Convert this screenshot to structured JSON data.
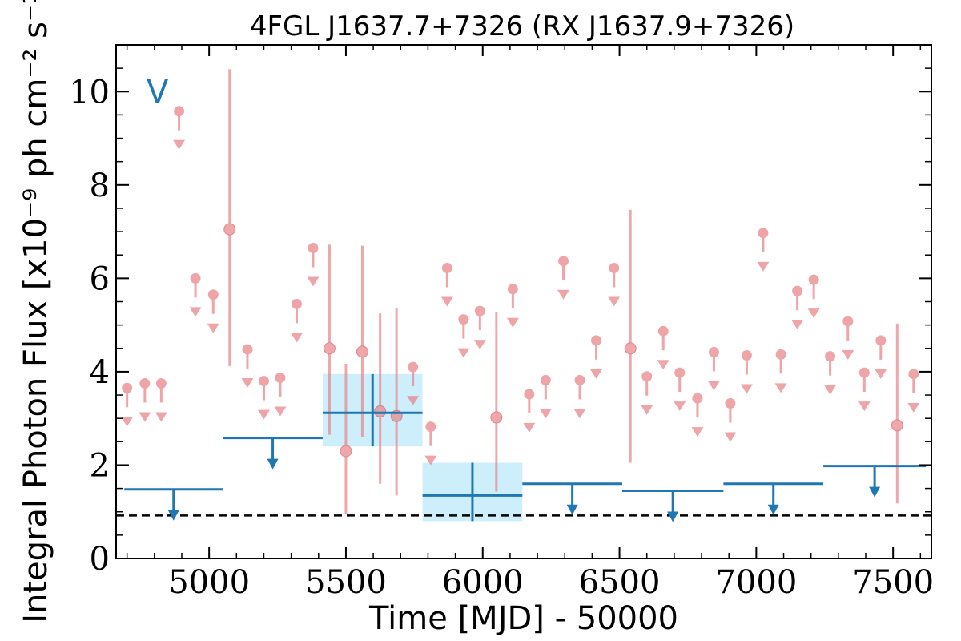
{
  "chart_data": {
    "type": "scatter",
    "title": "4FGL J1637.7+7326 (RX J1637.9+7326)",
    "xlabel": "Time [MJD] - 50000",
    "ylabel": "Integral Photon Flux [x10⁻⁹ ph cm⁻² s⁻¹]",
    "band_label": "V",
    "xlim": [
      4660,
      7640
    ],
    "ylim": [
      0,
      11
    ],
    "xticks": [
      5000,
      5500,
      6000,
      6500,
      7000,
      7500
    ],
    "yticks": [
      0,
      2,
      4,
      6,
      8,
      10
    ],
    "reference_line": 0.92,
    "colors": {
      "monthly": "#e8878c",
      "long": "#1f77b4",
      "band_fill": "#cdeefb",
      "reference": "#000000"
    },
    "series": [
      {
        "kind": "upper_limits",
        "points": [
          {
            "x": 4700,
            "y": 3.65
          },
          {
            "x": 4765,
            "y": 3.75
          },
          {
            "x": 4825,
            "y": 3.75
          },
          {
            "x": 4890,
            "y": 9.58
          },
          {
            "x": 4950,
            "y": 6.0
          },
          {
            "x": 5015,
            "y": 5.65
          },
          {
            "x": 5140,
            "y": 4.48
          },
          {
            "x": 5200,
            "y": 3.8
          },
          {
            "x": 5260,
            "y": 3.87
          },
          {
            "x": 5320,
            "y": 5.45
          },
          {
            "x": 5380,
            "y": 6.65
          },
          {
            "x": 5745,
            "y": 4.1
          },
          {
            "x": 5810,
            "y": 2.82
          },
          {
            "x": 5870,
            "y": 6.22
          },
          {
            "x": 5930,
            "y": 5.12
          },
          {
            "x": 5990,
            "y": 5.3
          },
          {
            "x": 6110,
            "y": 5.77
          },
          {
            "x": 6170,
            "y": 3.52
          },
          {
            "x": 6230,
            "y": 3.82
          },
          {
            "x": 6295,
            "y": 6.37
          },
          {
            "x": 6355,
            "y": 3.82
          },
          {
            "x": 6415,
            "y": 4.67
          },
          {
            "x": 6480,
            "y": 6.22
          },
          {
            "x": 6600,
            "y": 3.9
          },
          {
            "x": 6660,
            "y": 4.87
          },
          {
            "x": 6720,
            "y": 3.98
          },
          {
            "x": 6785,
            "y": 3.43
          },
          {
            "x": 6845,
            "y": 4.42
          },
          {
            "x": 6905,
            "y": 3.32
          },
          {
            "x": 6965,
            "y": 4.35
          },
          {
            "x": 7025,
            "y": 6.97
          },
          {
            "x": 7090,
            "y": 4.37
          },
          {
            "x": 7150,
            "y": 5.73
          },
          {
            "x": 7210,
            "y": 5.97
          },
          {
            "x": 7270,
            "y": 4.33
          },
          {
            "x": 7335,
            "y": 5.08
          },
          {
            "x": 7395,
            "y": 3.98
          },
          {
            "x": 7455,
            "y": 4.67
          },
          {
            "x": 7575,
            "y": 3.95
          }
        ]
      },
      {
        "kind": "detections",
        "points": [
          {
            "x": 5075,
            "y": 7.05,
            "ylo": 4.12,
            "yhi": 10.48
          },
          {
            "x": 5440,
            "y": 4.5,
            "ylo": 2.65,
            "yhi": 6.72
          },
          {
            "x": 5500,
            "y": 2.3,
            "ylo": 0.95,
            "yhi": 4.17
          },
          {
            "x": 5560,
            "y": 4.43,
            "ylo": 2.6,
            "yhi": 6.7
          },
          {
            "x": 5625,
            "y": 3.15,
            "ylo": 1.6,
            "yhi": 5.25
          },
          {
            "x": 5685,
            "y": 3.05,
            "ylo": 1.35,
            "yhi": 5.37
          },
          {
            "x": 6050,
            "y": 3.02,
            "ylo": 1.43,
            "yhi": 5.27
          },
          {
            "x": 6540,
            "y": 4.5,
            "ylo": 2.05,
            "yhi": 7.47
          },
          {
            "x": 7515,
            "y": 2.85,
            "ylo": 1.18,
            "yhi": 5.03
          }
        ]
      },
      {
        "kind": "long_term_upper_limits",
        "points": [
          {
            "x0": 4690,
            "x1": 5050,
            "y": 1.48
          },
          {
            "x0": 5050,
            "x1": 5415,
            "y": 2.58
          },
          {
            "x0": 6145,
            "x1": 6510,
            "y": 1.6
          },
          {
            "x0": 6510,
            "x1": 6880,
            "y": 1.45
          },
          {
            "x0": 6880,
            "x1": 7245,
            "y": 1.6
          },
          {
            "x0": 7245,
            "x1": 7620,
            "y": 1.98
          }
        ]
      },
      {
        "kind": "long_term_detections",
        "points": [
          {
            "x0": 5415,
            "x1": 5780,
            "y": 3.12,
            "ylo": 2.4,
            "yhi": 3.95
          },
          {
            "x0": 5780,
            "x1": 6145,
            "y": 1.35,
            "ylo": 0.8,
            "yhi": 2.05
          }
        ]
      }
    ]
  }
}
